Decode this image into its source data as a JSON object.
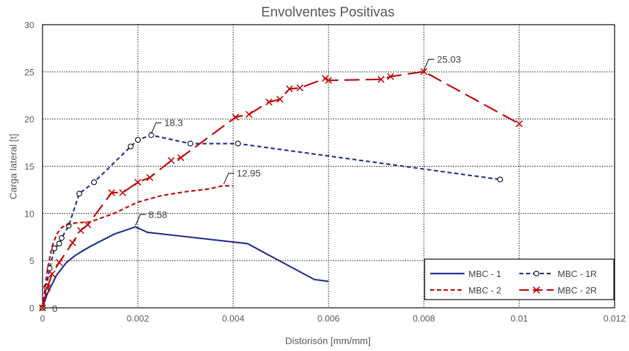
{
  "chart_data": {
    "type": "line",
    "title": "Envolventes Positivas",
    "xlabel": "Distorisón [mm/mm]",
    "ylabel": "Carga lateral [t]",
    "xlim": [
      0,
      0.012
    ],
    "ylim": [
      0,
      30
    ],
    "x_ticks": [
      "0",
      "0.002",
      "0.004",
      "0.006",
      "0.008",
      "0.01",
      "0.012"
    ],
    "y_ticks": [
      "0",
      "5",
      "10",
      "15",
      "20",
      "25",
      "30"
    ],
    "grid": true,
    "legend_position": "bottom-right",
    "series": [
      {
        "name": "MBC - 1",
        "color": "#1f2f8f",
        "dash": "solid",
        "marker": "none",
        "x": [
          0,
          0.0001,
          0.0002,
          0.0003,
          0.0005,
          0.0007,
          0.001,
          0.0015,
          0.00195,
          0.0022,
          0.0043,
          0.0057,
          0.006
        ],
        "y": [
          0,
          1.5,
          2.5,
          3.5,
          4.8,
          5.6,
          6.5,
          7.8,
          8.58,
          8.0,
          6.8,
          3.0,
          2.8
        ]
      },
      {
        "name": "MBC - 1R",
        "color": "#1f2f8f",
        "dash": "short-dash",
        "marker": "circle",
        "x": [
          0,
          8e-05,
          0.00015,
          0.00025,
          0.00035,
          0.0004,
          0.00055,
          0.00077,
          0.00108,
          0.00185,
          0.002,
          0.00228,
          0.0031,
          0.0041,
          0.0096
        ],
        "y": [
          0,
          2.2,
          4.2,
          6.3,
          6.8,
          7.4,
          8.7,
          12.1,
          13.3,
          17.1,
          17.8,
          18.3,
          17.4,
          17.4,
          13.6
        ]
      },
      {
        "name": "MBC - 2",
        "color": "#c00000",
        "dash": "short-dash",
        "marker": "none",
        "x": [
          0,
          5e-05,
          0.0001,
          0.0002,
          0.0003,
          0.0004,
          0.0005,
          0.0007,
          0.001,
          0.0015,
          0.002,
          0.0025,
          0.003,
          0.0035,
          0.0038,
          0.004
        ],
        "y": [
          0,
          2.0,
          4.0,
          6.5,
          7.8,
          8.5,
          8.8,
          9.0,
          9.1,
          10.0,
          11.2,
          11.9,
          12.3,
          12.6,
          12.95,
          12.9
        ]
      },
      {
        "name": "MBC - 2R",
        "color": "#c00000",
        "dash": "long-dash",
        "marker": "x",
        "x": [
          0,
          0.0001,
          0.0002,
          0.00035,
          0.00063,
          0.0008,
          0.00095,
          0.00145,
          0.00168,
          0.002,
          0.00225,
          0.0027,
          0.0029,
          0.00405,
          0.00433,
          0.00475,
          0.00498,
          0.00518,
          0.0054,
          0.00593,
          0.006,
          0.0071,
          0.0073,
          0.008,
          0.01
        ],
        "y": [
          0,
          2.1,
          3.6,
          4.8,
          6.9,
          8.2,
          8.8,
          12.2,
          12.2,
          13.3,
          13.8,
          15.6,
          15.9,
          20.2,
          20.5,
          21.8,
          22.1,
          23.2,
          23.3,
          24.3,
          24.1,
          24.2,
          24.5,
          25.03,
          19.5
        ]
      }
    ],
    "annotations": [
      {
        "text": "8.58",
        "x": 0.00195,
        "y": 8.58
      },
      {
        "text": "18.3",
        "x": 0.00228,
        "y": 18.3
      },
      {
        "text": "12.95",
        "x": 0.0038,
        "y": 12.95
      },
      {
        "text": "25.03",
        "x": 0.008,
        "y": 25.03
      },
      {
        "text": "0",
        "x": 0,
        "y": 0
      }
    ]
  }
}
